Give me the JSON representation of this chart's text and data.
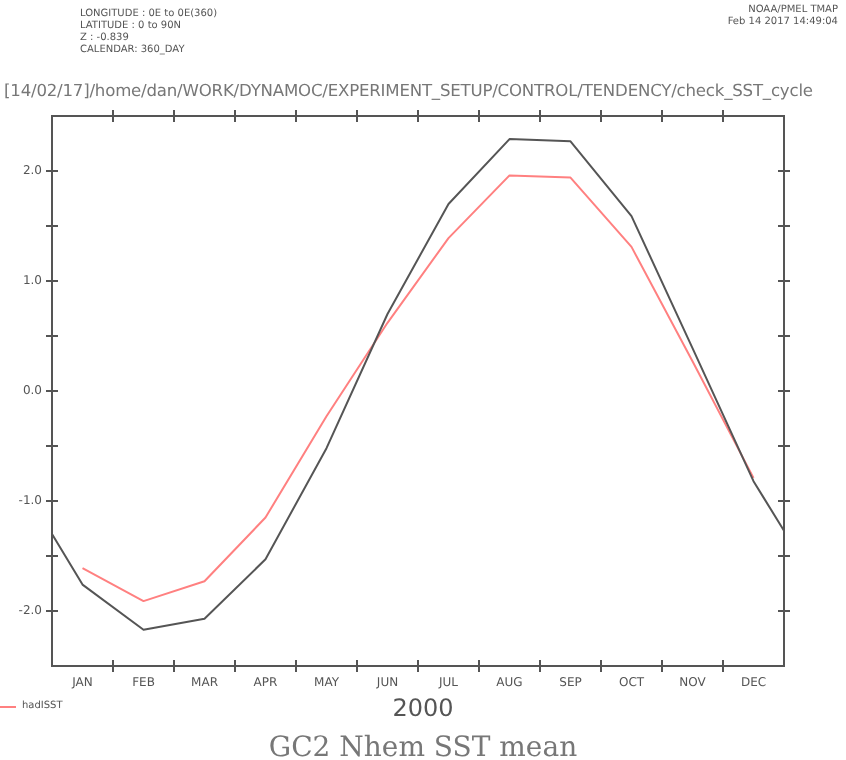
{
  "chart_data": {
    "type": "line",
    "title": "GC2 Nhem SST mean",
    "xlabel": "2000",
    "annotations": [
      "LONGITUDE : 0E to 0E(360)",
      "LATITUDE : 0 to 90N",
      "Z : -0.839",
      "CALENDAR: 360_DAY",
      "NOAA/PMEL TMAP",
      "Feb 14 2017 14:49:04",
      "[14/02/17]/home/dan/WORK/DYNAMOC/EXPERIMENT_SETUP/CONTROL/TENDENCY/check_SST_cycle"
    ],
    "categories": [
      null,
      "JAN",
      null,
      "FEB",
      null,
      "MAR",
      null,
      "APR",
      null,
      "MAY",
      null,
      "JUN",
      null,
      "JUL",
      null,
      "AUG",
      null,
      "SEP",
      null,
      "OCT",
      null,
      "NOV",
      null,
      "DEC",
      null
    ],
    "ylim": [
      -2.5,
      2.5
    ],
    "yticks": [
      {
        "value": -2.5,
        "label": null
      },
      {
        "value": -2,
        "label": "-2.0"
      },
      {
        "value": -1.5,
        "label": null
      },
      {
        "value": -1,
        "label": "-1.0"
      },
      {
        "value": -0.5,
        "label": null
      },
      {
        "value": 0,
        "label": "0.0"
      },
      {
        "value": 0.5,
        "label": null
      },
      {
        "value": 1,
        "label": "1.0"
      },
      {
        "value": 1.5,
        "label": null
      },
      {
        "value": 2,
        "label": "2.0"
      },
      {
        "value": 2.5,
        "label": null
      }
    ],
    "grid": false,
    "legend": "bottom left",
    "marker": "none",
    "line_style": "solid",
    "series": [
      {
        "color": "#555555",
        "values": [
          -1.3,
          -1.76,
          null,
          -2.17,
          null,
          -2.07,
          null,
          -1.53,
          null,
          -0.52,
          null,
          0.7,
          null,
          1.7,
          null,
          2.29,
          null,
          2.27,
          null,
          1.59,
          null,
          0.39,
          null,
          -0.82,
          -1.27
        ]
      },
      {
        "name": "hadISST",
        "color": "#ff8080",
        "values": [
          null,
          -1.61,
          null,
          -1.91,
          null,
          -1.73,
          null,
          -1.15,
          null,
          -0.23,
          null,
          0.62,
          null,
          1.39,
          null,
          1.96,
          null,
          1.94,
          null,
          1.31,
          null,
          0.27,
          null,
          -0.79,
          null
        ]
      }
    ]
  }
}
